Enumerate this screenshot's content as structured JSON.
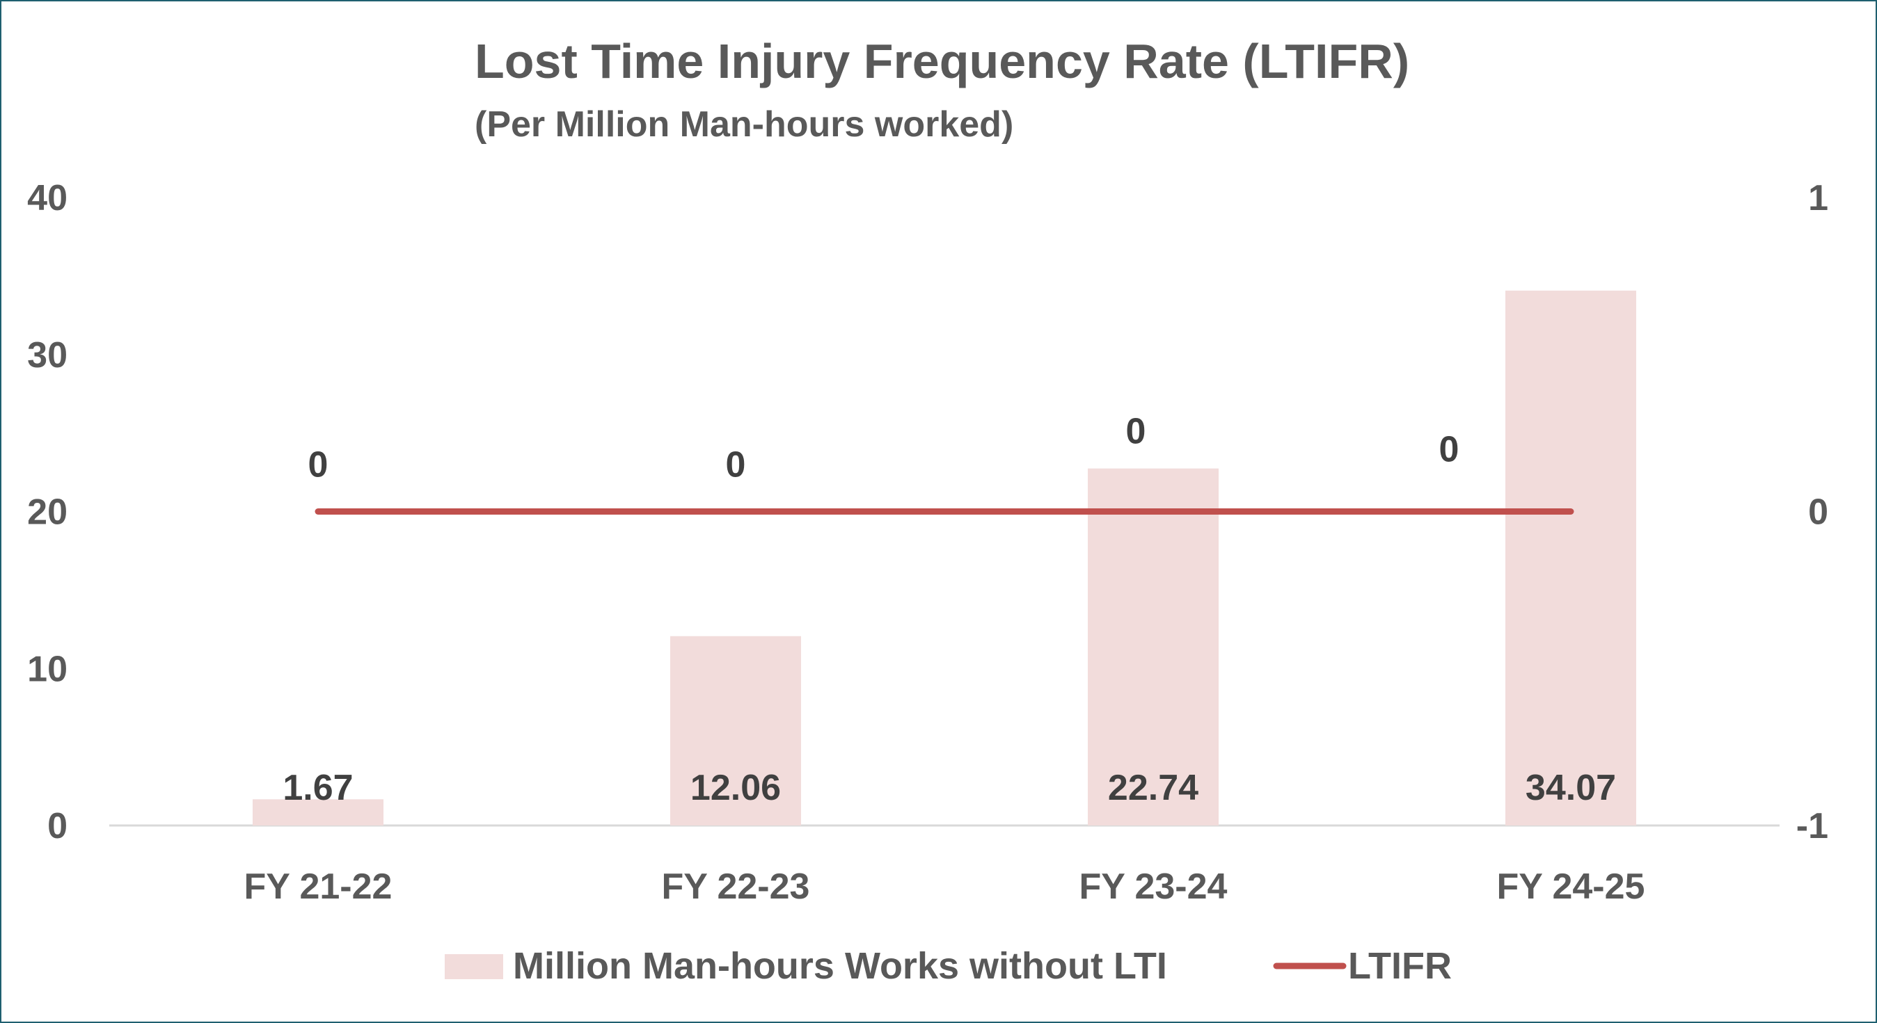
{
  "chart_data": {
    "type": "bar",
    "title": "Lost Time Injury Frequency Rate (LTIFR)",
    "subtitle": "(Per Million Man-hours worked)",
    "categories": [
      "FY 21-22",
      "FY 22-23",
      "FY 23-24",
      "FY 24-25"
    ],
    "series": [
      {
        "name": "Million Man-hours Works without LTI",
        "type": "bar",
        "axis": "left",
        "values": [
          1.67,
          12.06,
          22.74,
          34.07
        ],
        "labels": [
          "1.67",
          "12.06",
          "22.74",
          "34.07"
        ],
        "color": "#f2dcdb"
      },
      {
        "name": "LTIFR",
        "type": "line",
        "axis": "right",
        "values": [
          0,
          0,
          0,
          0
        ],
        "labels": [
          "0",
          "0",
          "0",
          "0"
        ],
        "color": "#c0504d"
      }
    ],
    "ylim_left": [
      0,
      40
    ],
    "yticks_left": [
      "0",
      "10",
      "20",
      "30",
      "40"
    ],
    "ylim_right": [
      -1,
      1
    ],
    "yticks_right": [
      "-1",
      "0",
      "1"
    ],
    "grid": false,
    "legend": "bottom"
  }
}
